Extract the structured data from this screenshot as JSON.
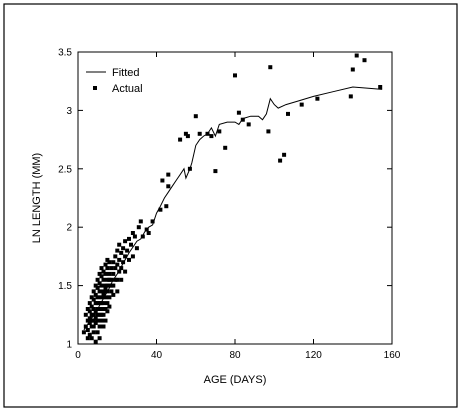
{
  "chart_data": {
    "type": "scatter",
    "title": "",
    "xlabel": "AGE (DAYS)",
    "ylabel": "LN LENGTH (MM)",
    "xlim": [
      0,
      160
    ],
    "ylim": [
      1,
      3.5
    ],
    "x_ticks": [
      0,
      40,
      80,
      120,
      160
    ],
    "y_ticks": [
      1,
      1.5,
      2,
      2.5,
      3,
      3.5
    ],
    "x_tick_labels": [
      "0",
      "40",
      "80",
      "120",
      "160"
    ],
    "y_tick_labels": [
      "1",
      "1.5",
      "2",
      "2.5",
      "3",
      "3.5"
    ],
    "grid": false,
    "legend_position": "top-left",
    "legend": [
      {
        "label": "Fitted",
        "marker": "line"
      },
      {
        "label": "Actual",
        "marker": "square"
      }
    ],
    "series": [
      {
        "name": "Fitted",
        "kind": "line",
        "points": [
          [
            3,
            1.12
          ],
          [
            5,
            1.17
          ],
          [
            6,
            1.2
          ],
          [
            7,
            1.22
          ],
          [
            8,
            1.25
          ],
          [
            9,
            1.28
          ],
          [
            10,
            1.3
          ],
          [
            11,
            1.33
          ],
          [
            12,
            1.36
          ],
          [
            13,
            1.39
          ],
          [
            14,
            1.42
          ],
          [
            15,
            1.45
          ],
          [
            16,
            1.48
          ],
          [
            17,
            1.52
          ],
          [
            18,
            1.55
          ],
          [
            20,
            1.6
          ],
          [
            22,
            1.66
          ],
          [
            24,
            1.72
          ],
          [
            26,
            1.78
          ],
          [
            28,
            1.83
          ],
          [
            30,
            1.88
          ],
          [
            32,
            1.9
          ],
          [
            34,
            1.96
          ],
          [
            36,
            2.0
          ],
          [
            38,
            2.02
          ],
          [
            40,
            2.12
          ],
          [
            42,
            2.18
          ],
          [
            44,
            2.25
          ],
          [
            46,
            2.3
          ],
          [
            48,
            2.35
          ],
          [
            50,
            2.4
          ],
          [
            52,
            2.45
          ],
          [
            54,
            2.5
          ],
          [
            55,
            2.42
          ],
          [
            57,
            2.5
          ],
          [
            58,
            2.55
          ],
          [
            60,
            2.7
          ],
          [
            62,
            2.75
          ],
          [
            64,
            2.78
          ],
          [
            66,
            2.8
          ],
          [
            68,
            2.85
          ],
          [
            70,
            2.78
          ],
          [
            72,
            2.88
          ],
          [
            76,
            2.9
          ],
          [
            80,
            2.9
          ],
          [
            82,
            2.88
          ],
          [
            84,
            2.93
          ],
          [
            88,
            2.95
          ],
          [
            92,
            2.95
          ],
          [
            94,
            2.92
          ],
          [
            96,
            2.97
          ],
          [
            98,
            3.1
          ],
          [
            100,
            3.05
          ],
          [
            102,
            3.02
          ],
          [
            106,
            3.05
          ],
          [
            112,
            3.08
          ],
          [
            120,
            3.12
          ],
          [
            130,
            3.16
          ],
          [
            140,
            3.2
          ],
          [
            148,
            3.19
          ],
          [
            155,
            3.18
          ]
        ]
      },
      {
        "name": "Actual",
        "kind": "scatter",
        "points": [
          [
            3,
            1.1
          ],
          [
            4,
            1.15
          ],
          [
            4,
            1.25
          ],
          [
            5,
            1.05
          ],
          [
            5,
            1.2
          ],
          [
            5,
            1.3
          ],
          [
            5,
            1.12
          ],
          [
            6,
            1.18
          ],
          [
            6,
            1.28
          ],
          [
            6,
            1.35
          ],
          [
            6,
            1.08
          ],
          [
            6,
            1.22
          ],
          [
            7,
            1.15
          ],
          [
            7,
            1.25
          ],
          [
            7,
            1.32
          ],
          [
            7,
            1.4
          ],
          [
            7,
            1.2
          ],
          [
            7,
            1.05
          ],
          [
            8,
            1.1
          ],
          [
            8,
            1.2
          ],
          [
            8,
            1.3
          ],
          [
            8,
            1.38
          ],
          [
            8,
            1.45
          ],
          [
            8,
            1.25
          ],
          [
            8,
            1.15
          ],
          [
            9,
            1.02
          ],
          [
            9,
            1.18
          ],
          [
            9,
            1.28
          ],
          [
            9,
            1.35
          ],
          [
            9,
            1.42
          ],
          [
            9,
            1.22
          ],
          [
            9,
            1.5
          ],
          [
            10,
            1.1
          ],
          [
            10,
            1.2
          ],
          [
            10,
            1.3
          ],
          [
            10,
            1.4
          ],
          [
            10,
            1.48
          ],
          [
            10,
            1.25
          ],
          [
            10,
            1.35
          ],
          [
            10,
            1.55
          ],
          [
            11,
            1.15
          ],
          [
            11,
            1.25
          ],
          [
            11,
            1.35
          ],
          [
            11,
            1.45
          ],
          [
            11,
            1.52
          ],
          [
            11,
            1.3
          ],
          [
            11,
            1.6
          ],
          [
            11,
            1.05
          ],
          [
            12,
            1.2
          ],
          [
            12,
            1.3
          ],
          [
            12,
            1.4
          ],
          [
            12,
            1.5
          ],
          [
            12,
            1.58
          ],
          [
            12,
            1.35
          ],
          [
            12,
            1.65
          ],
          [
            12,
            1.25
          ],
          [
            13,
            1.25
          ],
          [
            13,
            1.35
          ],
          [
            13,
            1.45
          ],
          [
            13,
            1.55
          ],
          [
            13,
            1.42
          ],
          [
            13,
            1.62
          ],
          [
            13,
            1.15
          ],
          [
            14,
            1.3
          ],
          [
            14,
            1.4
          ],
          [
            14,
            1.5
          ],
          [
            14,
            1.6
          ],
          [
            14,
            1.48
          ],
          [
            14,
            1.68
          ],
          [
            14,
            1.2
          ],
          [
            15,
            1.35
          ],
          [
            15,
            1.45
          ],
          [
            15,
            1.55
          ],
          [
            15,
            1.65
          ],
          [
            15,
            1.5
          ],
          [
            15,
            1.72
          ],
          [
            15,
            1.28
          ],
          [
            16,
            1.4
          ],
          [
            16,
            1.5
          ],
          [
            16,
            1.6
          ],
          [
            16,
            1.7
          ],
          [
            16,
            1.55
          ],
          [
            16,
            1.32
          ],
          [
            17,
            1.45
          ],
          [
            17,
            1.55
          ],
          [
            17,
            1.65
          ],
          [
            17,
            1.5
          ],
          [
            18,
            1.5
          ],
          [
            18,
            1.6
          ],
          [
            18,
            1.7
          ],
          [
            18,
            1.42
          ],
          [
            19,
            1.55
          ],
          [
            19,
            1.65
          ],
          [
            19,
            1.75
          ],
          [
            20,
            1.55
          ],
          [
            20,
            1.68
          ],
          [
            20,
            1.8
          ],
          [
            20,
            1.45
          ],
          [
            21,
            1.62
          ],
          [
            21,
            1.72
          ],
          [
            21,
            1.85
          ],
          [
            22,
            1.65
          ],
          [
            22,
            1.78
          ],
          [
            22,
            1.55
          ],
          [
            23,
            1.7
          ],
          [
            23,
            1.82
          ],
          [
            24,
            1.75
          ],
          [
            24,
            1.88
          ],
          [
            24,
            1.62
          ],
          [
            25,
            1.8
          ],
          [
            26,
            1.9
          ],
          [
            26,
            1.72
          ],
          [
            27,
            1.85
          ],
          [
            28,
            1.95
          ],
          [
            28,
            1.75
          ],
          [
            29,
            1.92
          ],
          [
            30,
            1.82
          ],
          [
            31,
            2.0
          ],
          [
            32,
            2.05
          ],
          [
            33,
            1.92
          ],
          [
            35,
            1.98
          ],
          [
            36,
            1.95
          ],
          [
            38,
            2.05
          ],
          [
            42,
            2.15
          ],
          [
            43,
            2.4
          ],
          [
            46,
            2.45
          ],
          [
            46,
            2.35
          ],
          [
            45,
            2.18
          ],
          [
            52,
            2.75
          ],
          [
            56,
            2.78
          ],
          [
            55,
            2.8
          ],
          [
            57,
            2.5
          ],
          [
            60,
            2.95
          ],
          [
            62,
            2.8
          ],
          [
            66,
            2.8
          ],
          [
            68,
            2.78
          ],
          [
            70,
            2.48
          ],
          [
            72,
            2.82
          ],
          [
            75,
            2.68
          ],
          [
            80,
            3.3
          ],
          [
            82,
            2.98
          ],
          [
            84,
            2.92
          ],
          [
            87,
            2.88
          ],
          [
            97,
            2.82
          ],
          [
            98,
            3.37
          ],
          [
            103,
            2.57
          ],
          [
            105,
            2.62
          ],
          [
            107,
            2.97
          ],
          [
            114,
            3.05
          ],
          [
            122,
            3.1
          ],
          [
            139,
            3.12
          ],
          [
            140,
            3.35
          ],
          [
            142,
            3.47
          ],
          [
            146,
            3.43
          ],
          [
            154,
            3.2
          ]
        ]
      }
    ]
  }
}
